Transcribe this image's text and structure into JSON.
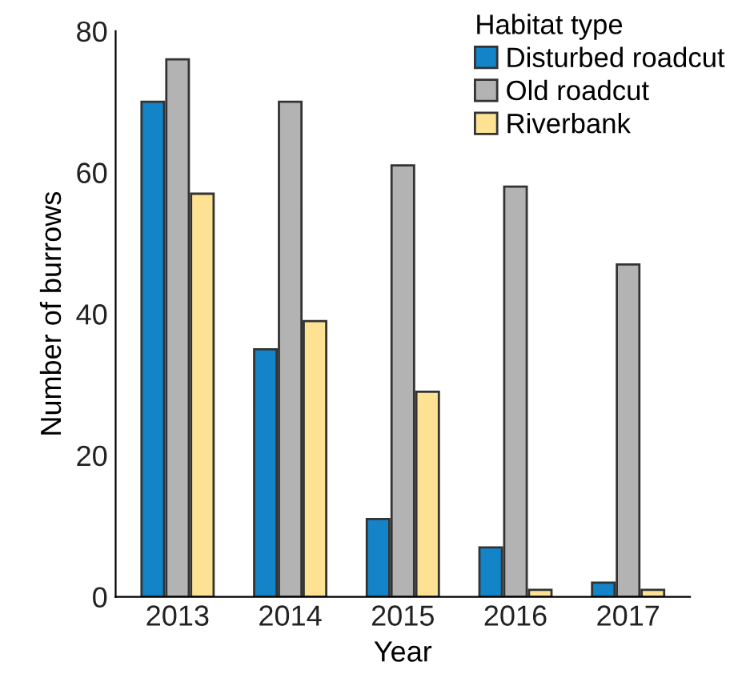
{
  "chart_data": {
    "type": "bar",
    "xlabel": "Year",
    "ylabel": "Number of burrows",
    "legend_title": "Habitat type",
    "categories": [
      "2013",
      "2014",
      "2015",
      "2016",
      "2017"
    ],
    "series": [
      {
        "name": "Disturbed roadcut",
        "color": "#1384c8",
        "values": [
          70,
          35,
          11,
          7,
          2
        ]
      },
      {
        "name": "Old roadcut",
        "color": "#b3b3b3",
        "values": [
          76,
          70,
          61,
          58,
          47
        ]
      },
      {
        "name": "Riverbank",
        "color": "#fde294",
        "values": [
          57,
          39,
          29,
          1,
          1
        ]
      }
    ],
    "ylim": [
      0,
      80
    ],
    "yticks": [
      0,
      20,
      40,
      60,
      80
    ],
    "grid": false,
    "legend": "top right"
  }
}
